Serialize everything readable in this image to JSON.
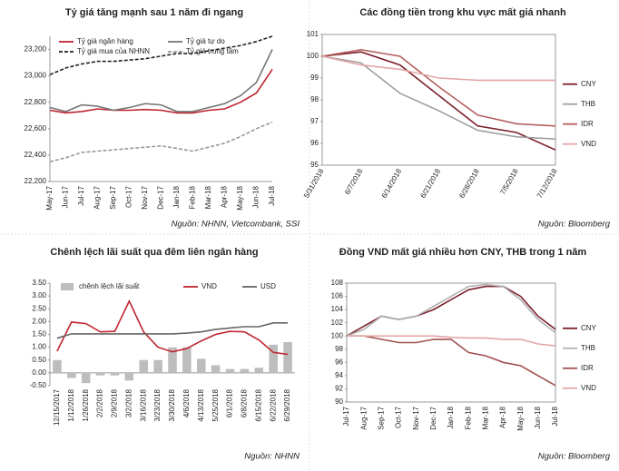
{
  "chart_data": [
    {
      "type": "line",
      "title": "Tỷ giá tăng mạnh sau 1 năm đi ngang",
      "source": "Nguồn: NHNN, Vietcombank, SSI",
      "legend": "top",
      "categories": [
        "May-17",
        "Jun-17",
        "Jul-17",
        "Aug-17",
        "Sep-17",
        "Oct-17",
        "Nov-17",
        "Dec-17",
        "Jan-18",
        "Feb-18",
        "Mar-18",
        "Apr-18",
        "May-18",
        "Jun-18",
        "Jul-18"
      ],
      "series": [
        {
          "name": "Tỷ giá ngân hàng",
          "color": "#c0242f",
          "dash": false,
          "values": [
            22740,
            22720,
            22730,
            22750,
            22740,
            22740,
            22745,
            22740,
            22720,
            22720,
            22740,
            22750,
            22800,
            22870,
            23050
          ]
        },
        {
          "name": "Tỷ giá tự do",
          "color": "#777777",
          "dash": false,
          "values": [
            22760,
            22730,
            22780,
            22770,
            22740,
            22760,
            22790,
            22780,
            22730,
            22730,
            22760,
            22790,
            22850,
            22950,
            23200
          ]
        },
        {
          "name": "Tỷ giá mua của NHNN",
          "color": "#222222",
          "dash": true,
          "values": [
            23010,
            23060,
            23090,
            23110,
            23110,
            23120,
            23130,
            23150,
            23170,
            23170,
            23190,
            23210,
            23230,
            23260,
            23300
          ]
        },
        {
          "name": "Tỷ giá trung tâm",
          "color": "#999999",
          "dash": true,
          "values": [
            22350,
            22380,
            22420,
            22430,
            22440,
            22450,
            22460,
            22470,
            22450,
            22430,
            22460,
            22490,
            22540,
            22600,
            22650
          ]
        }
      ],
      "ylim": [
        22200,
        23300
      ],
      "yticks": [
        {
          "value": 22200,
          "label": "22,200"
        },
        {
          "value": 22400,
          "label": "22,400"
        },
        {
          "value": 22600,
          "label": "22,600"
        },
        {
          "value": 22800,
          "label": "22,800"
        },
        {
          "value": 23000,
          "label": "23,000"
        },
        {
          "value": 23200,
          "label": "23,200"
        }
      ]
    },
    {
      "type": "line",
      "title": "Các đồng tiền trong khu vực mất giá nhanh",
      "source": "Nguồn: Bloomberg",
      "legend": "right",
      "categories": [
        "5/31/2018",
        "6/7/2018",
        "6/14/2018",
        "6/21/2018",
        "6/28/2018",
        "7/5/2018",
        "7/12/2018"
      ],
      "series": [
        {
          "name": "CNY",
          "color": "#7b1f2a",
          "dash": false,
          "values": [
            100,
            100.2,
            99.6,
            98.2,
            96.8,
            96.5,
            95.7
          ]
        },
        {
          "name": "THB",
          "color": "#a0a0a0",
          "dash": false,
          "values": [
            100,
            99.7,
            98.3,
            97.5,
            96.6,
            96.3,
            96.2
          ]
        },
        {
          "name": "IDR",
          "color": "#b5605f",
          "dash": false,
          "values": [
            100,
            100.3,
            100.0,
            98.6,
            97.3,
            96.9,
            96.8
          ]
        },
        {
          "name": "VND",
          "color": "#e3a6a8",
          "dash": false,
          "values": [
            100,
            99.6,
            99.4,
            99.0,
            98.9,
            98.9,
            98.9
          ]
        }
      ],
      "ylim": [
        95,
        101
      ],
      "yticks": [
        95,
        96,
        97,
        98,
        99,
        100,
        101
      ]
    },
    {
      "type": "combo",
      "title": "Chênh lệch lãi suất qua đêm liên ngân hàng",
      "source": "Nguồn: NHNN",
      "legend": "top",
      "categories": [
        "12/15/2017",
        "1/12/2018",
        "1/26/2018",
        "2/2/2018",
        "2/9/2018",
        "3/2/2018",
        "3/16/2018",
        "3/23/2018",
        "3/30/2018",
        "4/6/2018",
        "4/13/2018",
        "5/25/2018",
        "6/1/2018",
        "6/8/2018",
        "6/15/2018",
        "6/22/2018",
        "6/29/2018"
      ],
      "series": [
        {
          "name": "chênh lệch lãi suất",
          "kind": "bar",
          "color": "#bdbdbd",
          "values": [
            0.5,
            -0.2,
            -0.4,
            -0.1,
            -0.1,
            -0.3,
            0.5,
            0.5,
            1.0,
            1.0,
            0.55,
            0.3,
            0.15,
            0.15,
            0.2,
            1.1,
            1.2
          ]
        },
        {
          "name": "VND",
          "kind": "line",
          "color": "#c0242f",
          "values": [
            0.85,
            1.98,
            1.92,
            1.6,
            1.62,
            2.8,
            1.6,
            1.0,
            0.82,
            0.95,
            1.25,
            1.5,
            1.62,
            1.6,
            1.28,
            0.8,
            0.72
          ]
        },
        {
          "name": "USD",
          "kind": "line",
          "color": "#666666",
          "values": [
            1.35,
            1.52,
            1.52,
            1.52,
            1.52,
            1.52,
            1.52,
            1.52,
            1.52,
            1.55,
            1.6,
            1.7,
            1.75,
            1.8,
            1.8,
            1.95,
            1.95
          ]
        }
      ],
      "ylim": [
        -0.5,
        3.5
      ],
      "yticks": [
        {
          "value": -0.5,
          "label": "-0.50"
        },
        {
          "value": 0,
          "label": "0.00"
        },
        {
          "value": 0.5,
          "label": "0.50"
        },
        {
          "value": 1,
          "label": "1.00"
        },
        {
          "value": 1.5,
          "label": "1.50"
        },
        {
          "value": 2,
          "label": "2.00"
        },
        {
          "value": 2.5,
          "label": "2.50"
        },
        {
          "value": 3,
          "label": "3.00"
        },
        {
          "value": 3.5,
          "label": "3.50"
        }
      ]
    },
    {
      "type": "line",
      "title": "Đồng VND mất giá nhiều hơn CNY, THB trong 1 năm",
      "source": "Nguồn: Bloomberg",
      "legend": "right",
      "categories": [
        "Jul-17",
        "Aug-17",
        "Sep-17",
        "Oct-17",
        "Nov-17",
        "Dec-17",
        "Jan-18",
        "Feb-18",
        "Mar-18",
        "Apr-18",
        "May-18",
        "Jun-18",
        "Jul-18"
      ],
      "series": [
        {
          "name": "CNY",
          "color": "#7b1f2a",
          "dash": false,
          "values": [
            100,
            101.5,
            103,
            102.5,
            103,
            104,
            105.5,
            107,
            107.5,
            107.5,
            106,
            103,
            101
          ]
        },
        {
          "name": "THB",
          "color": "#b0b0b0",
          "dash": false,
          "values": [
            100,
            101,
            103,
            102.5,
            103,
            104.5,
            106,
            107.5,
            107.8,
            107.5,
            105.5,
            102.5,
            100.5
          ]
        },
        {
          "name": "IDR",
          "color": "#a0504f",
          "dash": false,
          "values": [
            100,
            100,
            99.5,
            99,
            99,
            99.5,
            99.5,
            97.5,
            97,
            96,
            95.5,
            94,
            92.5
          ]
        },
        {
          "name": "VND",
          "color": "#e3a6a8",
          "dash": false,
          "values": [
            100,
            100,
            100,
            100,
            100,
            100,
            99.8,
            99.7,
            99.7,
            99.5,
            99.5,
            98.8,
            98.5
          ]
        }
      ],
      "ylim": [
        90,
        108
      ],
      "yticks": [
        90,
        92,
        94,
        96,
        98,
        100,
        102,
        104,
        106,
        108
      ]
    }
  ]
}
